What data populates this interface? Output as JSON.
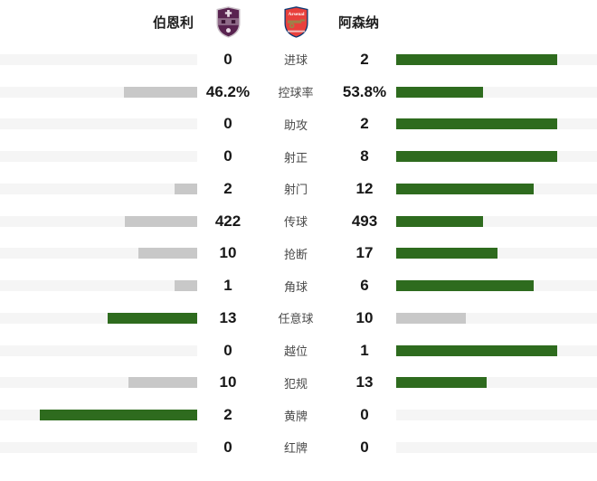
{
  "header": {
    "home_team": "伯恩利",
    "away_team": "阿森纳",
    "away_crest_text": "Arsenal"
  },
  "colors": {
    "win_bar": "#2e6b1e",
    "lose_bar": "#c8c8c8",
    "track": "#f5f5f5",
    "value_text": "#171717",
    "label_text": "#4a4a4a",
    "burnley_claret": "#592350",
    "burnley_band": "#8f6b89",
    "arsenal_red": "#e8403c",
    "arsenal_navy": "#063672",
    "arsenal_gold": "#9c824a"
  },
  "chart_data": {
    "type": "bar",
    "orientation": "horizontal-mirrored",
    "teams": [
      "伯恩利",
      "阿森纳"
    ],
    "bar_fill_rule": "width = value / (home+away) * 80% of track; higher value green, lower gray",
    "rows": [
      {
        "label": "进球",
        "home": 0,
        "away": 2,
        "home_text": "0",
        "away_text": "2"
      },
      {
        "label": "控球率",
        "home": 46.2,
        "away": 53.8,
        "home_text": "46.2%",
        "away_text": "53.8%"
      },
      {
        "label": "助攻",
        "home": 0,
        "away": 2,
        "home_text": "0",
        "away_text": "2"
      },
      {
        "label": "射正",
        "home": 0,
        "away": 8,
        "home_text": "0",
        "away_text": "8"
      },
      {
        "label": "射门",
        "home": 2,
        "away": 12,
        "home_text": "2",
        "away_text": "12"
      },
      {
        "label": "传球",
        "home": 422,
        "away": 493,
        "home_text": "422",
        "away_text": "493"
      },
      {
        "label": "抢断",
        "home": 10,
        "away": 17,
        "home_text": "10",
        "away_text": "17"
      },
      {
        "label": "角球",
        "home": 1,
        "away": 6,
        "home_text": "1",
        "away_text": "6"
      },
      {
        "label": "任意球",
        "home": 13,
        "away": 10,
        "home_text": "13",
        "away_text": "10"
      },
      {
        "label": "越位",
        "home": 0,
        "away": 1,
        "home_text": "0",
        "away_text": "1"
      },
      {
        "label": "犯规",
        "home": 10,
        "away": 13,
        "home_text": "10",
        "away_text": "13"
      },
      {
        "label": "黄牌",
        "home": 2,
        "away": 0,
        "home_text": "2",
        "away_text": "0"
      },
      {
        "label": "红牌",
        "home": 0,
        "away": 0,
        "home_text": "0",
        "away_text": "0"
      }
    ]
  }
}
